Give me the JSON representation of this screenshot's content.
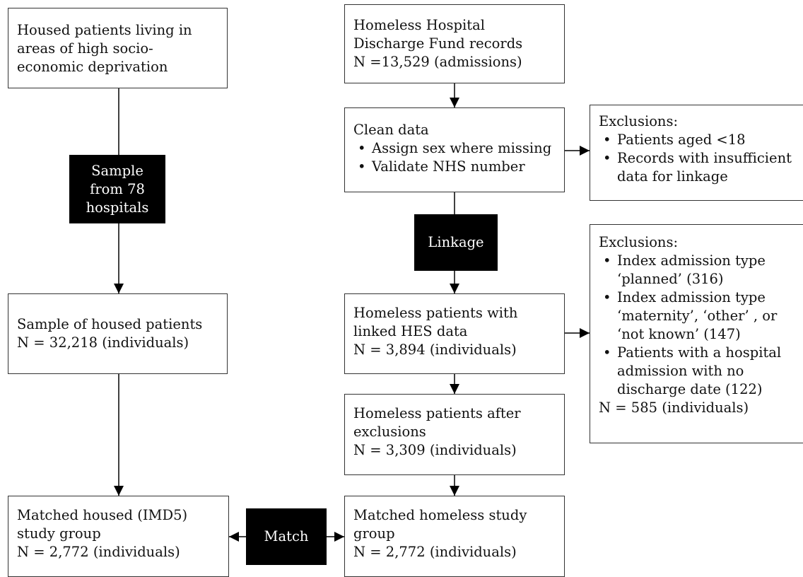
{
  "left_column": {
    "housed_source": [
      "Housed patients living in",
      "areas of high socio-",
      "economic deprivation"
    ],
    "sample_label": [
      "Sample",
      "from 78",
      "hospitals"
    ],
    "housed_sample": [
      "Sample of housed patients",
      "N = 32,218 (individuals)"
    ],
    "matched_housed": [
      "Matched housed (IMD5)",
      "study group",
      "N = 2,772 (individuals)"
    ]
  },
  "right_column": {
    "hhdf_records": [
      "Homeless Hospital",
      "Discharge Fund records",
      "N =13,529 (admissions)"
    ],
    "clean_data": {
      "title": "Clean data",
      "items": [
        "Assign sex where missing",
        "Validate NHS number"
      ]
    },
    "linkage_label": "Linkage",
    "linked_hes": [
      "Homeless patients with",
      "linked HES data",
      "N = 3,894 (individuals)"
    ],
    "after_exclusions": [
      "Homeless patients after",
      "exclusions",
      "N = 3,309 (individuals)"
    ],
    "matched_homeless": [
      "Matched homeless study",
      "group",
      "N = 2,772 (individuals)"
    ]
  },
  "match_label": "Match",
  "exclusions_1": {
    "title": "Exclusions:",
    "items": [
      [
        "Patients aged <18"
      ],
      [
        "Records with insufficient",
        "data for linkage"
      ]
    ]
  },
  "exclusions_2": {
    "title": "Exclusions:",
    "items": [
      [
        "Index admission type",
        "‘planned’ (316)"
      ],
      [
        "Index admission type",
        "‘maternity’, ‘other’ , or",
        "‘not known’ (147)"
      ],
      [
        "Patients with a hospital",
        "admission with no",
        "discharge date (122)"
      ]
    ],
    "total": "N = 585 (individuals)"
  }
}
